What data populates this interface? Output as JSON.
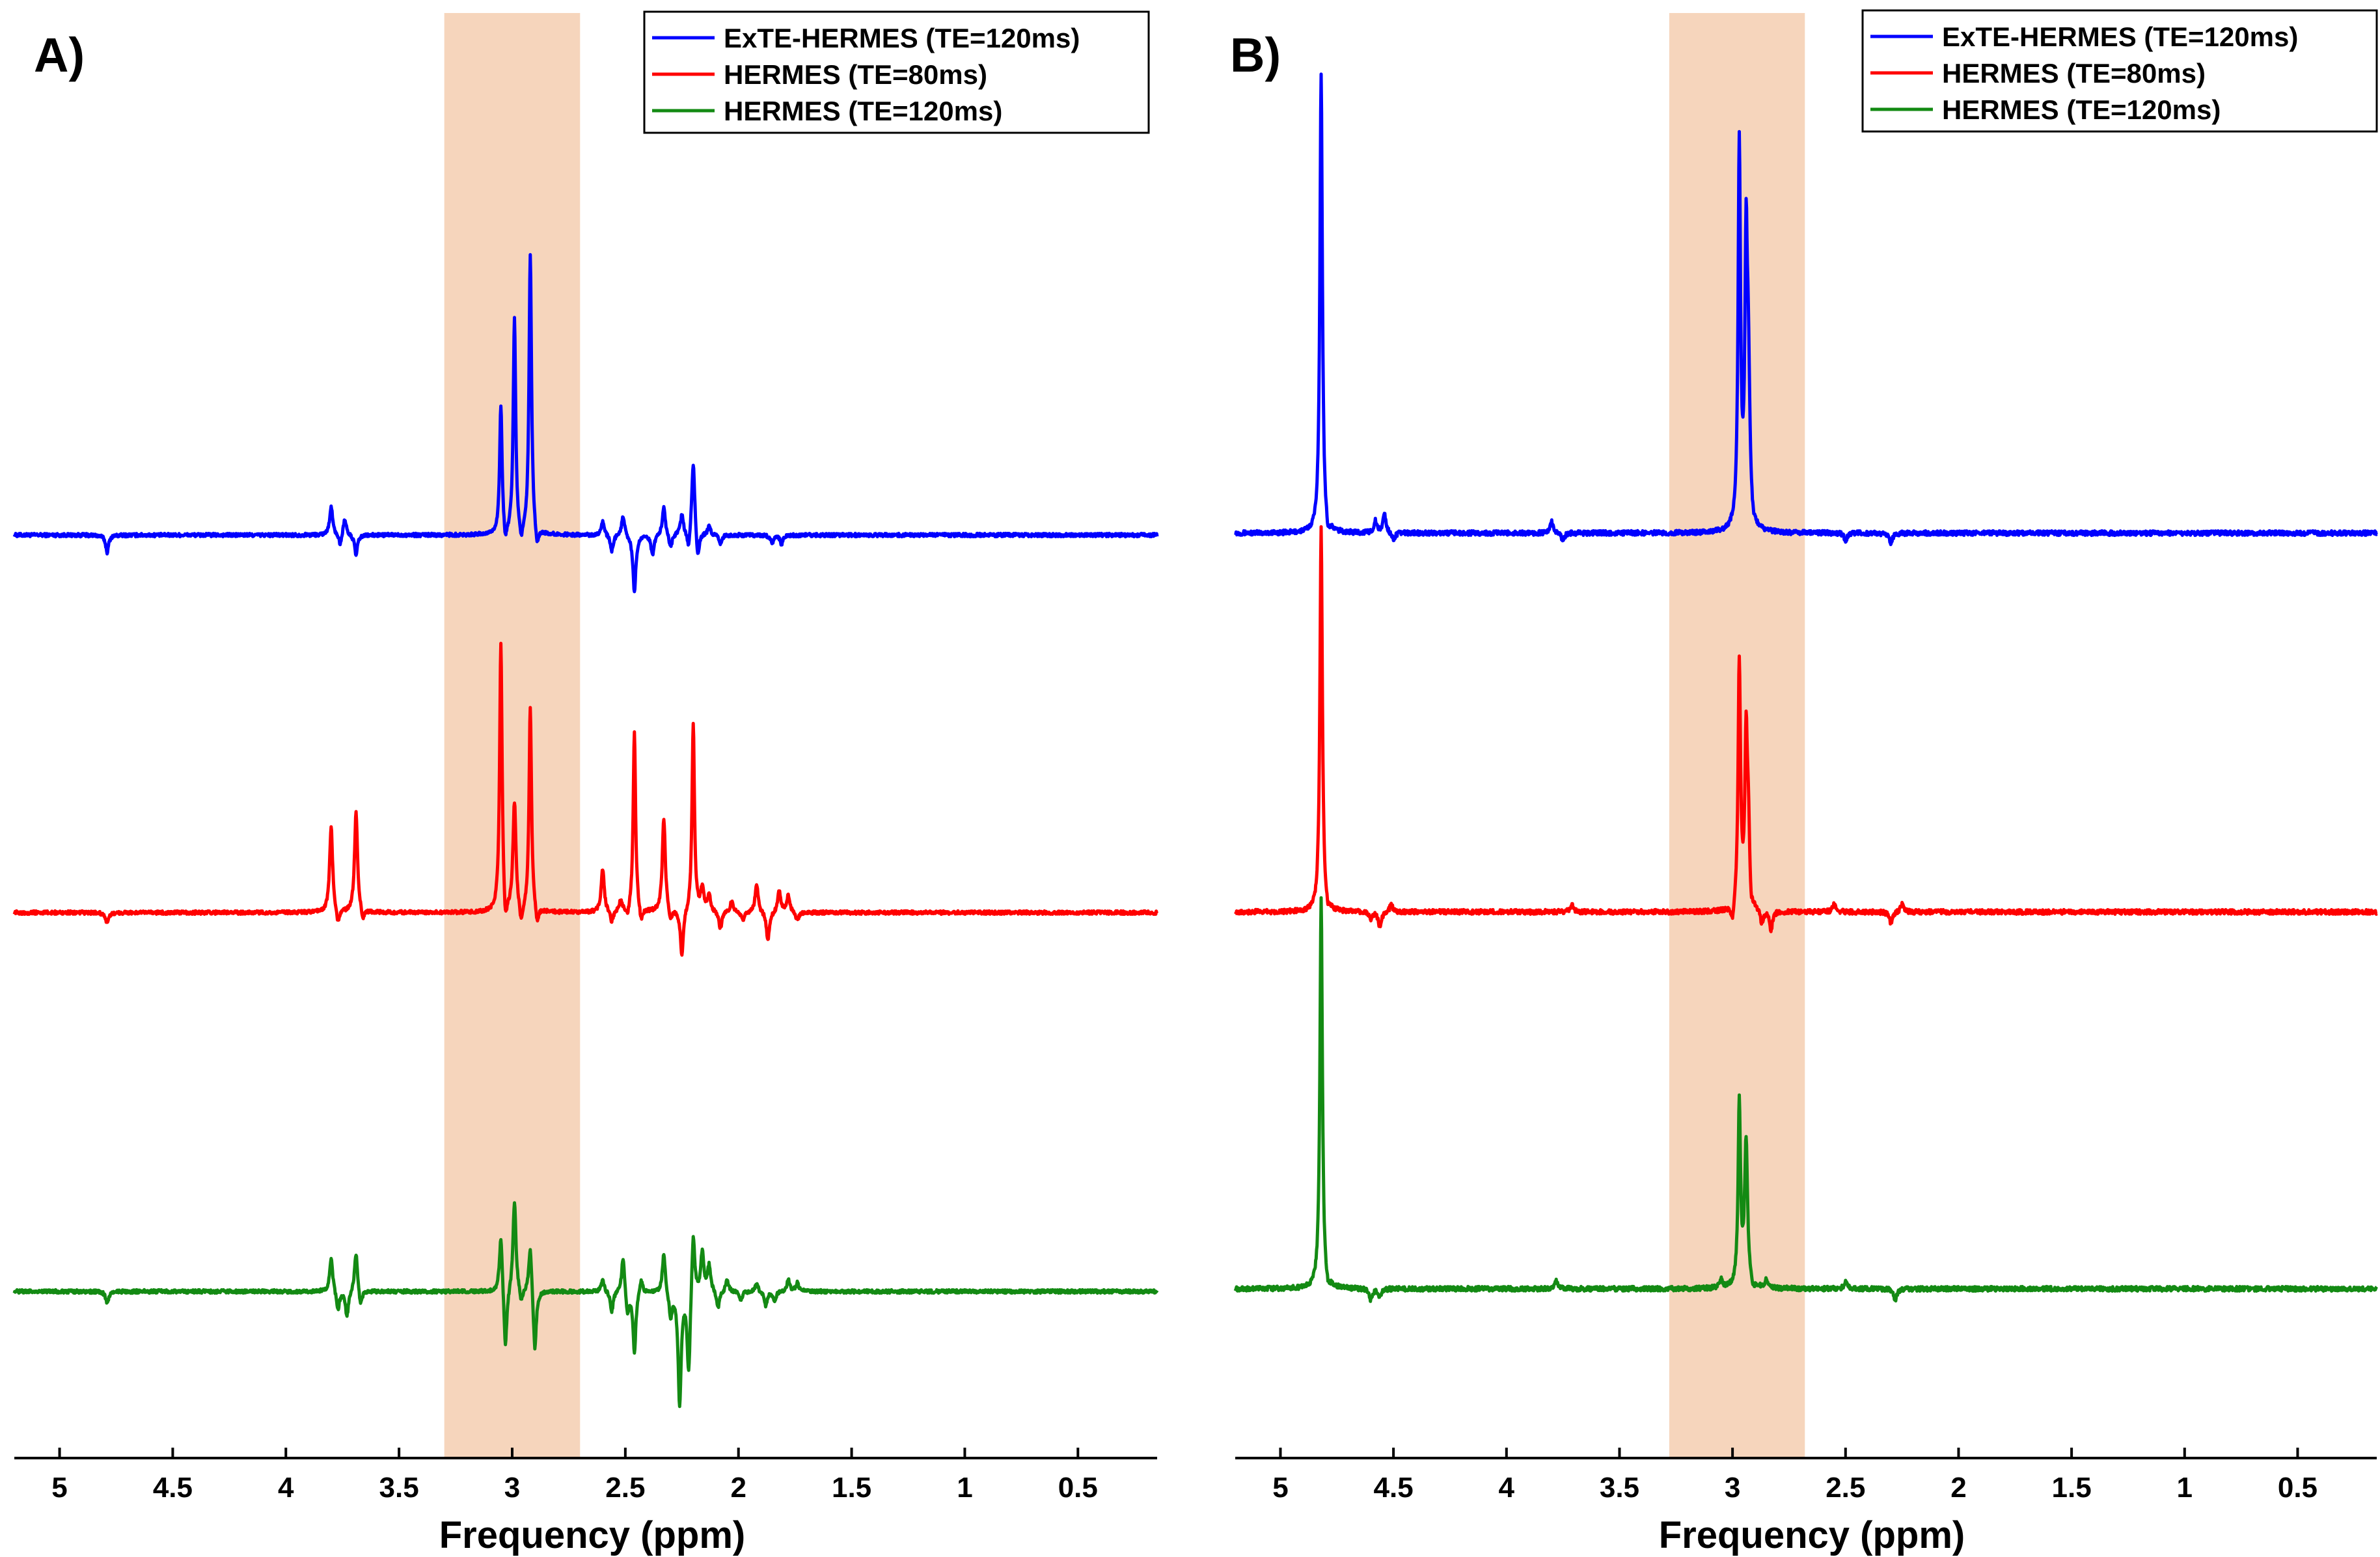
{
  "chart_data": [
    {
      "type": "line",
      "panel_label": "A)",
      "xlabel": "Frequency (ppm)",
      "x_axis": {
        "range": [
          5.2,
          0.15
        ],
        "reversed": true,
        "ticks": [
          5,
          4.5,
          4,
          3.5,
          3,
          2.5,
          2,
          1.5,
          1,
          0.5
        ],
        "tick_labels": [
          "5",
          "4.5",
          "4",
          "3.5",
          "3",
          "2.5",
          "2",
          "1.5",
          "1",
          "0.5"
        ]
      },
      "highlight_band_ppm": [
        3.3,
        2.7
      ],
      "highlight_color": "#f6d5bc",
      "legend": {
        "position": "top-right",
        "boxed": true
      },
      "series": [
        {
          "name": "ExTE-HERMES (TE=120ms)",
          "color": "#0000ff",
          "offset": 2,
          "peaks": [
            {
              "x": 4.79,
              "y": -0.06
            },
            {
              "x": 3.8,
              "y": 0.1
            },
            {
              "x": 3.76,
              "y": -0.04
            },
            {
              "x": 3.74,
              "y": 0.06
            },
            {
              "x": 3.69,
              "y": -0.07
            },
            {
              "x": 3.05,
              "y": 0.45
            },
            {
              "x": 3.03,
              "y": -0.06
            },
            {
              "x": 2.99,
              "y": 0.75
            },
            {
              "x": 2.96,
              "y": -0.06
            },
            {
              "x": 2.92,
              "y": 0.98
            },
            {
              "x": 2.89,
              "y": -0.07
            },
            {
              "x": 2.6,
              "y": 0.05
            },
            {
              "x": 2.56,
              "y": -0.06
            },
            {
              "x": 2.51,
              "y": 0.07
            },
            {
              "x": 2.46,
              "y": -0.2
            },
            {
              "x": 2.38,
              "y": -0.07
            },
            {
              "x": 2.33,
              "y": 0.1
            },
            {
              "x": 2.3,
              "y": -0.05
            },
            {
              "x": 2.25,
              "y": 0.07
            },
            {
              "x": 2.22,
              "y": -0.07
            },
            {
              "x": 2.2,
              "y": 0.27
            },
            {
              "x": 2.18,
              "y": -0.1
            },
            {
              "x": 2.13,
              "y": 0.03
            },
            {
              "x": 2.08,
              "y": -0.03
            },
            {
              "x": 1.85,
              "y": -0.03
            },
            {
              "x": 1.81,
              "y": -0.03
            }
          ]
        },
        {
          "name": "HERMES (TE=80ms)",
          "color": "#ff0000",
          "offset": 1,
          "peaks": [
            {
              "x": 4.79,
              "y": -0.04
            },
            {
              "x": 3.8,
              "y": 0.3
            },
            {
              "x": 3.77,
              "y": -0.05
            },
            {
              "x": 3.69,
              "y": 0.35
            },
            {
              "x": 3.66,
              "y": -0.04
            },
            {
              "x": 3.05,
              "y": 0.95
            },
            {
              "x": 3.03,
              "y": -0.1
            },
            {
              "x": 2.99,
              "y": 0.38
            },
            {
              "x": 2.96,
              "y": -0.07
            },
            {
              "x": 2.92,
              "y": 0.72
            },
            {
              "x": 2.89,
              "y": -0.06
            },
            {
              "x": 2.6,
              "y": 0.15
            },
            {
              "x": 2.56,
              "y": -0.04
            },
            {
              "x": 2.52,
              "y": 0.04
            },
            {
              "x": 2.49,
              "y": -0.03
            },
            {
              "x": 2.46,
              "y": 0.63
            },
            {
              "x": 2.43,
              "y": -0.05
            },
            {
              "x": 2.33,
              "y": 0.33
            },
            {
              "x": 2.3,
              "y": -0.04
            },
            {
              "x": 2.25,
              "y": -0.16
            },
            {
              "x": 2.2,
              "y": 0.66
            },
            {
              "x": 2.16,
              "y": 0.08
            },
            {
              "x": 2.13,
              "y": 0.06
            },
            {
              "x": 2.08,
              "y": -0.06
            },
            {
              "x": 2.03,
              "y": 0.04
            },
            {
              "x": 1.98,
              "y": -0.03
            },
            {
              "x": 1.92,
              "y": 0.1
            },
            {
              "x": 1.87,
              "y": -0.1
            },
            {
              "x": 1.82,
              "y": 0.08
            },
            {
              "x": 1.78,
              "y": 0.06
            },
            {
              "x": 1.74,
              "y": -0.03
            }
          ]
        },
        {
          "name": "HERMES (TE=120ms)",
          "color": "#138a13",
          "offset": 0,
          "peaks": [
            {
              "x": 4.79,
              "y": -0.04
            },
            {
              "x": 3.8,
              "y": 0.12
            },
            {
              "x": 3.77,
              "y": -0.07
            },
            {
              "x": 3.73,
              "y": -0.09
            },
            {
              "x": 3.69,
              "y": 0.14
            },
            {
              "x": 3.67,
              "y": -0.06
            },
            {
              "x": 3.05,
              "y": 0.2
            },
            {
              "x": 3.03,
              "y": -0.22
            },
            {
              "x": 2.99,
              "y": 0.32
            },
            {
              "x": 2.96,
              "y": -0.05
            },
            {
              "x": 2.92,
              "y": 0.17
            },
            {
              "x": 2.9,
              "y": -0.22
            },
            {
              "x": 2.6,
              "y": 0.04
            },
            {
              "x": 2.56,
              "y": -0.07
            },
            {
              "x": 2.51,
              "y": 0.13
            },
            {
              "x": 2.49,
              "y": -0.08
            },
            {
              "x": 2.46,
              "y": -0.21
            },
            {
              "x": 2.43,
              "y": 0.05
            },
            {
              "x": 2.33,
              "y": 0.14
            },
            {
              "x": 2.3,
              "y": -0.09
            },
            {
              "x": 2.26,
              "y": -0.39
            },
            {
              "x": 2.22,
              "y": -0.3
            },
            {
              "x": 2.2,
              "y": 0.23
            },
            {
              "x": 2.16,
              "y": 0.14
            },
            {
              "x": 2.13,
              "y": 0.09
            },
            {
              "x": 2.09,
              "y": -0.06
            },
            {
              "x": 2.05,
              "y": 0.04
            },
            {
              "x": 1.99,
              "y": -0.03
            },
            {
              "x": 1.92,
              "y": 0.03
            },
            {
              "x": 1.88,
              "y": -0.05
            },
            {
              "x": 1.84,
              "y": -0.03
            },
            {
              "x": 1.78,
              "y": 0.04
            },
            {
              "x": 1.74,
              "y": 0.03
            }
          ]
        }
      ]
    },
    {
      "type": "line",
      "panel_label": "B)",
      "xlabel": "Frequency (ppm)",
      "x_axis": {
        "range": [
          5.2,
          0.15
        ],
        "reversed": true,
        "ticks": [
          5,
          4.5,
          4,
          3.5,
          3,
          2.5,
          2,
          1.5,
          1,
          0.5
        ],
        "tick_labels": [
          "5",
          "4.5",
          "4",
          "3.5",
          "3",
          "2.5",
          "2",
          "1.5",
          "1",
          "0.5"
        ]
      },
      "highlight_band_ppm": [
        3.28,
        2.68
      ],
      "highlight_color": "#f6d5bc",
      "legend": {
        "position": "top-right",
        "boxed": true
      },
      "series": [
        {
          "name": "ExTE-HERMES (TE=120ms)",
          "color": "#0000ff",
          "offset": 2,
          "peaks": [
            {
              "x": 4.82,
              "y": 1.2
            },
            {
              "x": 4.79,
              "y": -0.03
            },
            {
              "x": 4.58,
              "y": 0.03
            },
            {
              "x": 4.54,
              "y": 0.05
            },
            {
              "x": 4.5,
              "y": -0.02
            },
            {
              "x": 3.8,
              "y": 0.03
            },
            {
              "x": 3.75,
              "y": -0.02
            },
            {
              "x": 2.97,
              "y": 1.0
            },
            {
              "x": 2.94,
              "y": 0.68
            },
            {
              "x": 2.93,
              "y": 0.38
            },
            {
              "x": 2.91,
              "y": -0.02
            },
            {
              "x": 2.5,
              "y": -0.02
            },
            {
              "x": 2.3,
              "y": -0.03
            }
          ]
        },
        {
          "name": "HERMES (TE=80ms)",
          "color": "#ff0000",
          "offset": 1,
          "peaks": [
            {
              "x": 4.82,
              "y": 1.0
            },
            {
              "x": 4.79,
              "y": -0.02
            },
            {
              "x": 4.6,
              "y": -0.02
            },
            {
              "x": 4.56,
              "y": -0.04
            },
            {
              "x": 4.51,
              "y": 0.02
            },
            {
              "x": 3.71,
              "y": 0.02
            },
            {
              "x": 3.0,
              "y": -0.05
            },
            {
              "x": 2.97,
              "y": 0.65
            },
            {
              "x": 2.94,
              "y": 0.42
            },
            {
              "x": 2.93,
              "y": 0.22
            },
            {
              "x": 2.92,
              "y": -0.06
            },
            {
              "x": 2.87,
              "y": -0.04
            },
            {
              "x": 2.83,
              "y": -0.05
            },
            {
              "x": 2.55,
              "y": 0.02
            },
            {
              "x": 2.3,
              "y": -0.03
            },
            {
              "x": 2.25,
              "y": 0.02
            }
          ]
        },
        {
          "name": "HERMES (TE=120ms)",
          "color": "#138a13",
          "offset": 0,
          "peaks": [
            {
              "x": 4.82,
              "y": 1.02
            },
            {
              "x": 4.79,
              "y": -0.02
            },
            {
              "x": 4.6,
              "y": -0.03
            },
            {
              "x": 4.56,
              "y": -0.02
            },
            {
              "x": 3.78,
              "y": 0.02
            },
            {
              "x": 3.05,
              "y": 0.02
            },
            {
              "x": 2.97,
              "y": 0.48
            },
            {
              "x": 2.94,
              "y": 0.38
            },
            {
              "x": 2.91,
              "y": -0.02
            },
            {
              "x": 2.85,
              "y": 0.02
            },
            {
              "x": 2.5,
              "y": 0.02
            },
            {
              "x": 2.28,
              "y": -0.03
            }
          ]
        }
      ]
    }
  ]
}
